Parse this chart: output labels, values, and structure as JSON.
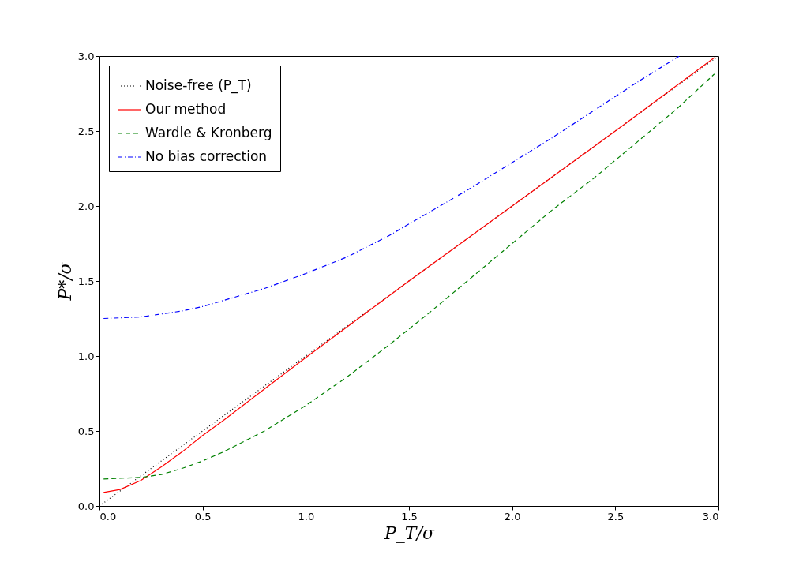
{
  "chart_data": {
    "type": "line",
    "xlabel": "P_T/σ",
    "ylabel": "P*/σ",
    "xlim": [
      0,
      3
    ],
    "ylim": [
      0,
      3
    ],
    "xticks": [
      {
        "value": 0,
        "label": "0.0"
      },
      {
        "value": 0.5,
        "label": "0.5"
      },
      {
        "value": 1,
        "label": "1.0"
      },
      {
        "value": 1.5,
        "label": "1.5"
      },
      {
        "value": 2,
        "label": "2.0"
      },
      {
        "value": 2.5,
        "label": "2.5"
      },
      {
        "value": 3,
        "label": "3.0"
      }
    ],
    "yticks": [
      {
        "value": 0,
        "label": "0.0"
      },
      {
        "value": 0.5,
        "label": "0.5"
      },
      {
        "value": 1,
        "label": "1.0"
      },
      {
        "value": 1.5,
        "label": "1.5"
      },
      {
        "value": 2,
        "label": "2.0"
      },
      {
        "value": 2.5,
        "label": "2.5"
      },
      {
        "value": 3,
        "label": "3.0"
      }
    ],
    "grid": false,
    "legend": "top left",
    "marker": "none",
    "series": [
      {
        "name": "Noise-free (P_T)",
        "color": "#000000",
        "line_style": "dotted",
        "x": [
          0,
          3
        ],
        "values": [
          0,
          3
        ]
      },
      {
        "name": "Our method",
        "color": "#ff0000",
        "line_style": "solid",
        "x": [
          0.02,
          0.1,
          0.2,
          0.3,
          0.4,
          0.5,
          0.6,
          0.8,
          1.0,
          1.5,
          2.0,
          2.5,
          2.98
        ],
        "values": [
          0.09,
          0.11,
          0.17,
          0.26,
          0.36,
          0.47,
          0.57,
          0.78,
          0.99,
          1.5,
          2.0,
          2.5,
          2.99
        ]
      },
      {
        "name": "Wardle & Kronberg",
        "color": "#008000",
        "line_style": "dashed",
        "x": [
          0.02,
          0.2,
          0.3,
          0.4,
          0.5,
          0.6,
          0.7,
          0.8,
          1.0,
          1.2,
          1.4,
          1.5,
          1.6,
          1.8,
          2.0,
          2.2,
          2.4,
          2.6,
          2.8,
          2.98
        ],
        "values": [
          0.18,
          0.19,
          0.21,
          0.25,
          0.3,
          0.36,
          0.43,
          0.5,
          0.67,
          0.86,
          1.07,
          1.18,
          1.29,
          1.52,
          1.75,
          1.98,
          2.19,
          2.42,
          2.65,
          2.88
        ]
      },
      {
        "name": "No bias correction",
        "color": "#0000ff",
        "line_style": "dashdot",
        "x": [
          0.02,
          0.2,
          0.4,
          0.5,
          0.6,
          0.8,
          1.0,
          1.2,
          1.4,
          1.5,
          1.6,
          1.8,
          2.0,
          2.2,
          2.4,
          2.6,
          2.81
        ],
        "values": [
          1.25,
          1.26,
          1.3,
          1.33,
          1.37,
          1.45,
          1.55,
          1.66,
          1.8,
          1.88,
          1.96,
          2.12,
          2.29,
          2.46,
          2.64,
          2.82,
          3.0
        ]
      }
    ]
  }
}
